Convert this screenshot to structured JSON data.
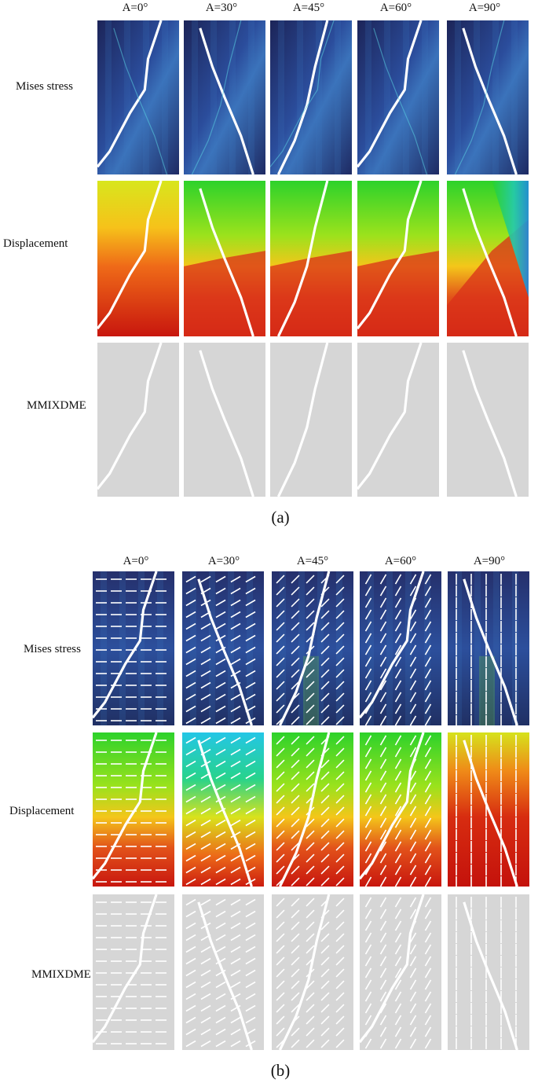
{
  "panel_a": {
    "angles": [
      "A=0°",
      "A=30°",
      "A=45°",
      "A=60°",
      "A=90°"
    ],
    "rows": [
      "Mises stress",
      "Displacement",
      "MMIXDME"
    ],
    "caption": "(a)"
  },
  "panel_b": {
    "angles": [
      "A=0°",
      "A=30°",
      "A=45°",
      "A=60°",
      "A=90°"
    ],
    "rows": [
      "Mises stress",
      "Displacement",
      "MMIXDME"
    ],
    "caption": "(b)",
    "fiber_orientations_deg": [
      0,
      30,
      45,
      60,
      90
    ]
  },
  "colors": {
    "stress_dark": "#1b1c4e",
    "stress_mid": "#2a4fa0",
    "stress_hot": "#3cb6d6",
    "disp_low": "#c81810",
    "disp_mid1": "#f5c21a",
    "disp_mid2": "#2fd12a",
    "disp_high": "#22c8e6",
    "mmix_gray": "#d6d6d6",
    "crack": "#ffffff"
  }
}
